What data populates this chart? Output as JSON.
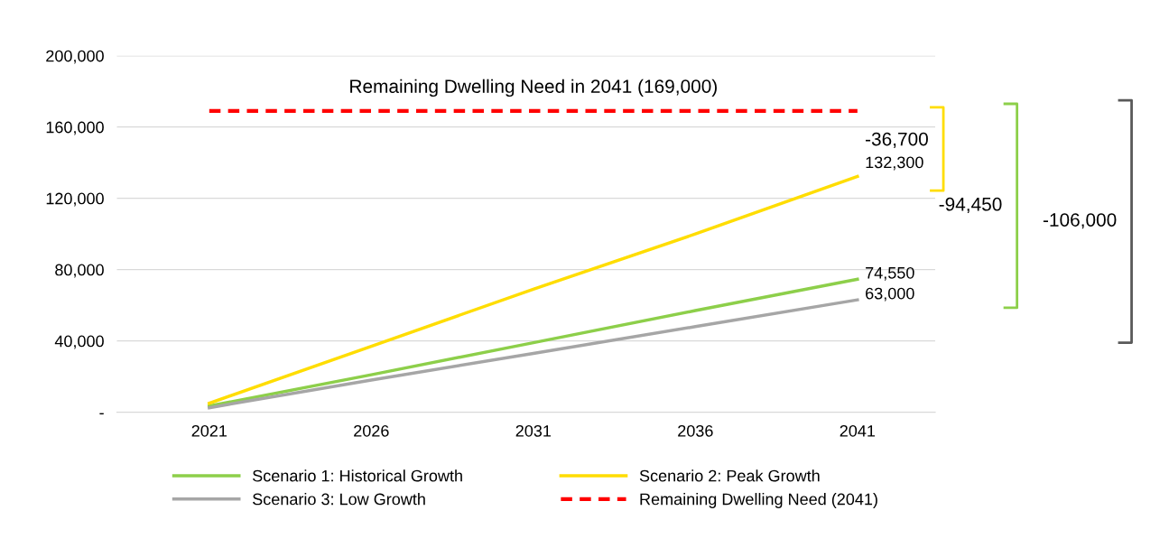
{
  "chart_data": {
    "type": "line",
    "categories": [
      "2021",
      "2026",
      "2031",
      "2036",
      "2041"
    ],
    "series": [
      {
        "name": "Scenario 1: Historical Growth",
        "color": "#8dcf4a",
        "values": [
          3500,
          21000,
          39000,
          57000,
          74550
        ],
        "value_labels": [
          null,
          null,
          null,
          null,
          "74,550"
        ]
      },
      {
        "name": "Scenario 2: Peak Growth",
        "color": "#ffdd00",
        "values": [
          5000,
          37000,
          69000,
          100000,
          132300
        ],
        "value_labels": [
          null,
          null,
          null,
          null,
          "132,300"
        ]
      },
      {
        "name": "Scenario 3: Low Growth",
        "color": "#a6a6a6",
        "values": [
          2500,
          18000,
          33000,
          48000,
          63000
        ],
        "value_labels": [
          null,
          null,
          null,
          null,
          "63,000"
        ]
      },
      {
        "name": "Remaining Dwelling Need (2041)",
        "color": "#ff0000",
        "values": [
          169000,
          169000,
          169000,
          169000,
          169000
        ],
        "line_style": "dashed"
      }
    ],
    "ylim": [
      0,
      200000
    ],
    "yticks": [
      {
        "value": 0,
        "label": "-"
      },
      {
        "value": 40000,
        "label": "40,000"
      },
      {
        "value": 80000,
        "label": "80,000"
      },
      {
        "value": 120000,
        "label": "120,000"
      },
      {
        "value": 160000,
        "label": "160,000"
      },
      {
        "value": 200000,
        "label": "200,000"
      }
    ],
    "grid": "y",
    "legend": "bottom",
    "marker": "none",
    "line_style": "solid",
    "annotations": [
      {
        "text": "Remaining Dwelling Need in 2041 (169,000)",
        "x": "2031",
        "y": 169000
      },
      "-36,700",
      "-94,450",
      "-106,000"
    ]
  }
}
